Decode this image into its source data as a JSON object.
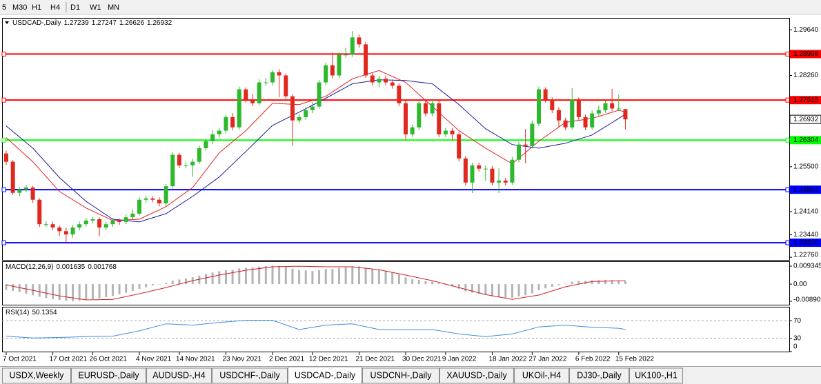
{
  "toolbar": {
    "timeframes": [
      "5",
      "M30",
      "H1",
      "H4",
      "D1",
      "W1",
      "MN"
    ]
  },
  "chart_data": [
    {
      "type": "candlestick",
      "title": "USDCAD-,Daily",
      "categories": [
        "7 Oct 2021",
        null,
        null,
        null,
        null,
        null,
        null,
        "17 Oct 2021",
        null,
        null,
        null,
        null,
        null,
        "26 Oct 2021",
        null,
        null,
        null,
        null,
        null,
        null,
        "4 Nov 2021",
        null,
        null,
        null,
        null,
        null,
        "14 Nov 2021",
        null,
        null,
        null,
        null,
        null,
        null,
        "23 Nov 2021",
        null,
        null,
        null,
        null,
        null,
        null,
        "2 Dec 2021",
        null,
        null,
        null,
        null,
        null,
        "12 Dec 2021",
        null,
        null,
        null,
        null,
        null,
        null,
        "21 Dec 2021",
        null,
        null,
        null,
        null,
        null,
        null,
        "30 Dec 2021",
        null,
        null,
        null,
        null,
        null,
        "9 Jan 2022",
        null,
        null,
        null,
        null,
        null,
        null,
        "18 Jan 2022",
        null,
        null,
        null,
        null,
        null,
        "27 Jan 2022",
        null,
        null,
        null,
        null,
        null,
        null,
        "6 Feb 2022",
        null,
        null,
        null,
        null,
        null,
        "15 Feb 2022",
        null
      ],
      "open": [
        1.259,
        1.2565,
        1.2471,
        1.2481,
        1.2487,
        1.245,
        1.2376,
        1.2376,
        1.2366,
        1.2355,
        1.2345,
        1.2366,
        1.2376,
        1.2387,
        1.2391,
        1.2366,
        1.2376,
        1.2387,
        1.2383,
        1.2397,
        1.2408,
        1.245,
        1.2454,
        1.245,
        1.2439,
        1.2491,
        1.2586,
        1.2554,
        1.2554,
        1.2565,
        1.2606,
        1.2627,
        1.2648,
        1.2659,
        1.27,
        1.2669,
        1.2784,
        1.2753,
        1.2742,
        1.2805,
        1.2805,
        1.2836,
        1.2826,
        1.2763,
        1.269,
        1.27,
        1.2721,
        1.2732,
        1.2805,
        1.2857,
        1.2826,
        1.2889,
        1.2889,
        1.2941,
        1.292,
        1.2826,
        1.2805,
        1.2816,
        1.2805,
        1.2795,
        1.2742,
        1.2648,
        1.2669,
        1.2742,
        1.2711,
        1.2742,
        1.2648,
        1.2659,
        1.2648,
        1.2575,
        1.2502,
        1.2554,
        1.2544,
        1.2544,
        1.2502,
        1.2508,
        1.2502,
        1.2571,
        1.2617,
        1.2613,
        1.268,
        1.2784,
        1.2753,
        1.2721,
        1.269,
        1.2669,
        1.2753,
        1.27,
        1.2669,
        1.2711,
        1.2721,
        1.2742,
        1.2726,
        1.27239
      ],
      "high": [
        1.2598,
        1.257,
        1.2488,
        1.2495,
        1.2492,
        1.2455,
        1.2385,
        1.2384,
        1.2372,
        1.2366,
        1.2372,
        1.2384,
        1.2395,
        1.2398,
        1.2396,
        1.2384,
        1.2395,
        1.2393,
        1.2405,
        1.242,
        1.2457,
        1.2462,
        1.2461,
        1.2457,
        1.2498,
        1.2593,
        1.2592,
        1.2565,
        1.2574,
        1.2614,
        1.2635,
        1.266,
        1.2668,
        1.2708,
        1.2712,
        1.2792,
        1.279,
        1.277,
        1.2815,
        1.2818,
        1.2843,
        1.2845,
        1.2832,
        1.277,
        1.271,
        1.273,
        1.2745,
        1.2812,
        1.2865,
        1.2895,
        1.2897,
        1.291,
        1.296,
        1.295,
        1.2927,
        1.2835,
        1.2825,
        1.2826,
        1.2814,
        1.2802,
        1.275,
        1.2677,
        1.275,
        1.275,
        1.2752,
        1.275,
        1.2668,
        1.2667,
        1.2655,
        1.2582,
        1.2562,
        1.2562,
        1.2553,
        1.2552,
        1.2545,
        1.2516,
        1.258,
        1.2625,
        1.2664,
        1.269,
        1.2792,
        1.279,
        1.276,
        1.273,
        1.2698,
        1.2788,
        1.276,
        1.2708,
        1.272,
        1.2735,
        1.275,
        1.2785,
        1.2768,
        1.27247
      ],
      "low": [
        1.2555,
        1.2465,
        1.2462,
        1.2474,
        1.244,
        1.2368,
        1.2368,
        1.2358,
        1.234,
        1.2322,
        1.2335,
        1.2357,
        1.2369,
        1.2378,
        1.234,
        1.2358,
        1.2368,
        1.2374,
        1.2376,
        1.239,
        1.2402,
        1.2441,
        1.2442,
        1.243,
        1.2432,
        1.2484,
        1.2546,
        1.2545,
        1.252,
        1.2558,
        1.2598,
        1.2618,
        1.2638,
        1.265,
        1.266,
        1.2662,
        1.2744,
        1.2733,
        1.2736,
        1.2795,
        1.2797,
        1.276,
        1.2755,
        1.2613,
        1.2682,
        1.2692,
        1.2712,
        1.2725,
        1.2797,
        1.2817,
        1.2818,
        1.288,
        1.2882,
        1.291,
        1.2818,
        1.2796,
        1.279,
        1.2796,
        1.2786,
        1.2733,
        1.263,
        1.264,
        1.2661,
        1.2702,
        1.2703,
        1.2639,
        1.264,
        1.263,
        1.2566,
        1.2493,
        1.247,
        1.2535,
        1.2508,
        1.2493,
        1.247,
        1.2493,
        1.2495,
        1.2563,
        1.256,
        1.2605,
        1.2672,
        1.2744,
        1.2712,
        1.267,
        1.266,
        1.2662,
        1.2691,
        1.266,
        1.2662,
        1.2703,
        1.2713,
        1.2718,
        1.2718,
        1.26626
      ],
      "close": [
        1.2565,
        1.2471,
        1.2481,
        1.2487,
        1.245,
        1.2376,
        1.2376,
        1.2366,
        1.2355,
        1.2345,
        1.2366,
        1.2376,
        1.2387,
        1.2391,
        1.2366,
        1.2376,
        1.2387,
        1.2383,
        1.2397,
        1.2408,
        1.245,
        1.2454,
        1.245,
        1.2439,
        1.2491,
        1.2586,
        1.2554,
        1.2554,
        1.2565,
        1.2606,
        1.2627,
        1.2648,
        1.2659,
        1.27,
        1.2669,
        1.2784,
        1.2753,
        1.2742,
        1.2805,
        1.2805,
        1.2836,
        1.2826,
        1.2763,
        1.269,
        1.27,
        1.2721,
        1.2732,
        1.2805,
        1.2857,
        1.2826,
        1.2889,
        1.2889,
        1.2941,
        1.292,
        1.2826,
        1.2805,
        1.2816,
        1.2805,
        1.2795,
        1.2742,
        1.2648,
        1.2669,
        1.2742,
        1.2711,
        1.2742,
        1.2648,
        1.2659,
        1.2648,
        1.2575,
        1.2502,
        1.2554,
        1.2544,
        1.2544,
        1.2502,
        1.2508,
        1.2502,
        1.2571,
        1.2617,
        1.2613,
        1.268,
        1.2784,
        1.2753,
        1.2721,
        1.269,
        1.2669,
        1.2753,
        1.27,
        1.2669,
        1.2711,
        1.2721,
        1.2742,
        1.2726,
        1.2726,
        1.26932
      ],
      "up_color": "#2db82d",
      "down_color": "#e0281e",
      "ylim": [
        1.2268,
        1.2998
      ],
      "yticks": [
        {
          "value": 1.2964,
          "label": "1.29640"
        },
        {
          "value": 1.2826,
          "label": "1.28260"
        },
        {
          "value": 1.255,
          "label": "1.25500"
        },
        {
          "value": 1.2414,
          "label": "1.24140"
        },
        {
          "value": 1.2344,
          "label": "1.23440"
        },
        {
          "value": 1.2276,
          "label": "1.22760"
        }
      ],
      "levels": [
        {
          "value": 1.28908,
          "color": "#ff0000"
        },
        {
          "value": 1.27515,
          "color": "#ff0000"
        },
        {
          "value": 1.26304,
          "color": "#00ff00"
        },
        {
          "value": 1.24804,
          "color": "#0000ff"
        },
        {
          "value": 1.232,
          "label": "1.23200",
          "color": "#0000ff"
        }
      ],
      "ma": [
        {
          "color": "#e02020",
          "x": [
            0,
            4,
            8,
            12,
            16,
            20,
            24,
            28,
            32,
            36,
            40,
            44,
            48,
            52,
            56,
            60,
            64,
            68,
            72,
            76,
            80,
            84,
            88,
            92,
            93
          ],
          "values": [
            1.2638,
            1.2565,
            1.2475,
            1.2425,
            1.2387,
            1.2391,
            1.2429,
            1.2487,
            1.2592,
            1.2659,
            1.2742,
            1.2738,
            1.2763,
            1.2816,
            1.2841,
            1.2805,
            1.2732,
            1.2659,
            1.2606,
            1.2559,
            1.2627,
            1.2684,
            1.2696,
            1.2721,
            1.2715
          ]
        },
        {
          "color": "#1a1a9a",
          "x": [
            0,
            4,
            8,
            12,
            16,
            20,
            24,
            28,
            32,
            36,
            40,
            44,
            48,
            52,
            56,
            60,
            64,
            68,
            72,
            76,
            80,
            84,
            88,
            92,
            93
          ],
          "values": [
            1.2673,
            1.2606,
            1.2517,
            1.2445,
            1.2391,
            1.2383,
            1.2408,
            1.246,
            1.2519,
            1.2596,
            1.2675,
            1.2715,
            1.2757,
            1.2801,
            1.2813,
            1.2811,
            1.2801,
            1.2738,
            1.2665,
            1.2617,
            1.2606,
            1.2621,
            1.2646,
            1.2696,
            1.2709
          ]
        }
      ]
    },
    {
      "type": "macd",
      "title": "MACD(12,26,9)",
      "color": "#b4b4b4",
      "values": [
        -0.003,
        -0.0035,
        -0.0042,
        -0.005,
        -0.0058,
        -0.0066,
        -0.0072,
        -0.0078,
        -0.0083,
        -0.0087,
        -0.0088,
        -0.0086,
        -0.0082,
        -0.0078,
        -0.0074,
        -0.0068,
        -0.0061,
        -0.0053,
        -0.0045,
        -0.0036,
        -0.0025,
        -0.0016,
        -0.0008,
        -0.0002,
        0.0006,
        0.0018,
        0.0024,
        0.003,
        0.0036,
        0.0044,
        0.0052,
        0.006,
        0.0067,
        0.0072,
        0.0074,
        0.0082,
        0.0085,
        0.0087,
        0.0091,
        0.0093,
        0.0096,
        0.0095,
        0.0089,
        0.008,
        0.0074,
        0.0071,
        0.0068,
        0.0072,
        0.0078,
        0.0079,
        0.0084,
        0.0086,
        0.0092,
        0.0092,
        0.0085,
        0.0078,
        0.0073,
        0.0067,
        0.006,
        0.005,
        0.0035,
        0.0025,
        0.0022,
        0.0016,
        0.0014,
        0.0004,
        -0.0004,
        -0.0012,
        -0.0024,
        -0.0038,
        -0.0044,
        -0.005,
        -0.0056,
        -0.0064,
        -0.0068,
        -0.0072,
        -0.007,
        -0.0064,
        -0.0058,
        -0.0048,
        -0.0032,
        -0.0022,
        -0.0014,
        -0.0006,
        0.0002,
        0.0012,
        0.0016,
        0.0017,
        0.0019,
        0.002,
        0.0021,
        0.0021,
        0.0019,
        0.001635
      ],
      "signal": {
        "color": "#d02020",
        "x": [
          0,
          4,
          8,
          12,
          16,
          20,
          24,
          28,
          32,
          36,
          40,
          44,
          48,
          52,
          56,
          60,
          64,
          68,
          72,
          76,
          80,
          84,
          88,
          92,
          93
        ],
        "values": [
          -0.0004,
          -0.0032,
          -0.0061,
          -0.0082,
          -0.0079,
          -0.005,
          -0.0018,
          0.0018,
          0.0047,
          0.0072,
          0.009,
          0.0093,
          0.009,
          0.009,
          0.0075,
          0.0047,
          0.0018,
          -0.0018,
          -0.0054,
          -0.0079,
          -0.0057,
          -0.0014,
          0.0014,
          0.0017,
          0.001768
        ]
      },
      "ylim": [
        -0.0107,
        0.0115
      ],
      "yticks": [
        0.009345,
        {
          "value": 0,
          "label": "0.00"
        },
        {
          "value": -0.0089,
          "label": "-0.00890"
        }
      ]
    },
    {
      "type": "rsi",
      "title": "RSI(14)",
      "series": [
        {
          "color": "#3c8ce6",
          "x": [
            0,
            4,
            8,
            12,
            16,
            20,
            24,
            28,
            32,
            36,
            40,
            44,
            48,
            52,
            56,
            60,
            64,
            68,
            72,
            76,
            80,
            84,
            88,
            92,
            93
          ],
          "values": [
            35,
            31,
            32,
            34,
            35,
            47,
            63,
            60,
            66,
            71,
            71,
            50,
            60,
            63,
            50,
            50,
            50,
            40,
            34,
            40,
            56,
            60,
            55,
            53,
            50.1354
          ]
        }
      ],
      "ylim": [
        0,
        100
      ],
      "yticks": [
        70,
        30,
        0
      ],
      "levels": [
        70,
        30
      ]
    }
  ],
  "tabs": {
    "items": [
      "USDX,Weekly",
      "EURUSD-,Daily",
      "AUDUSD-,H4",
      "USDCHF-,Daily",
      "USDCAD-,Daily",
      "USDCNH-,Daily",
      "XAUUSD-,Daily",
      "UKOil-,H4",
      "DJ30-,Daily",
      "UK100-,H1"
    ],
    "active": 4
  }
}
